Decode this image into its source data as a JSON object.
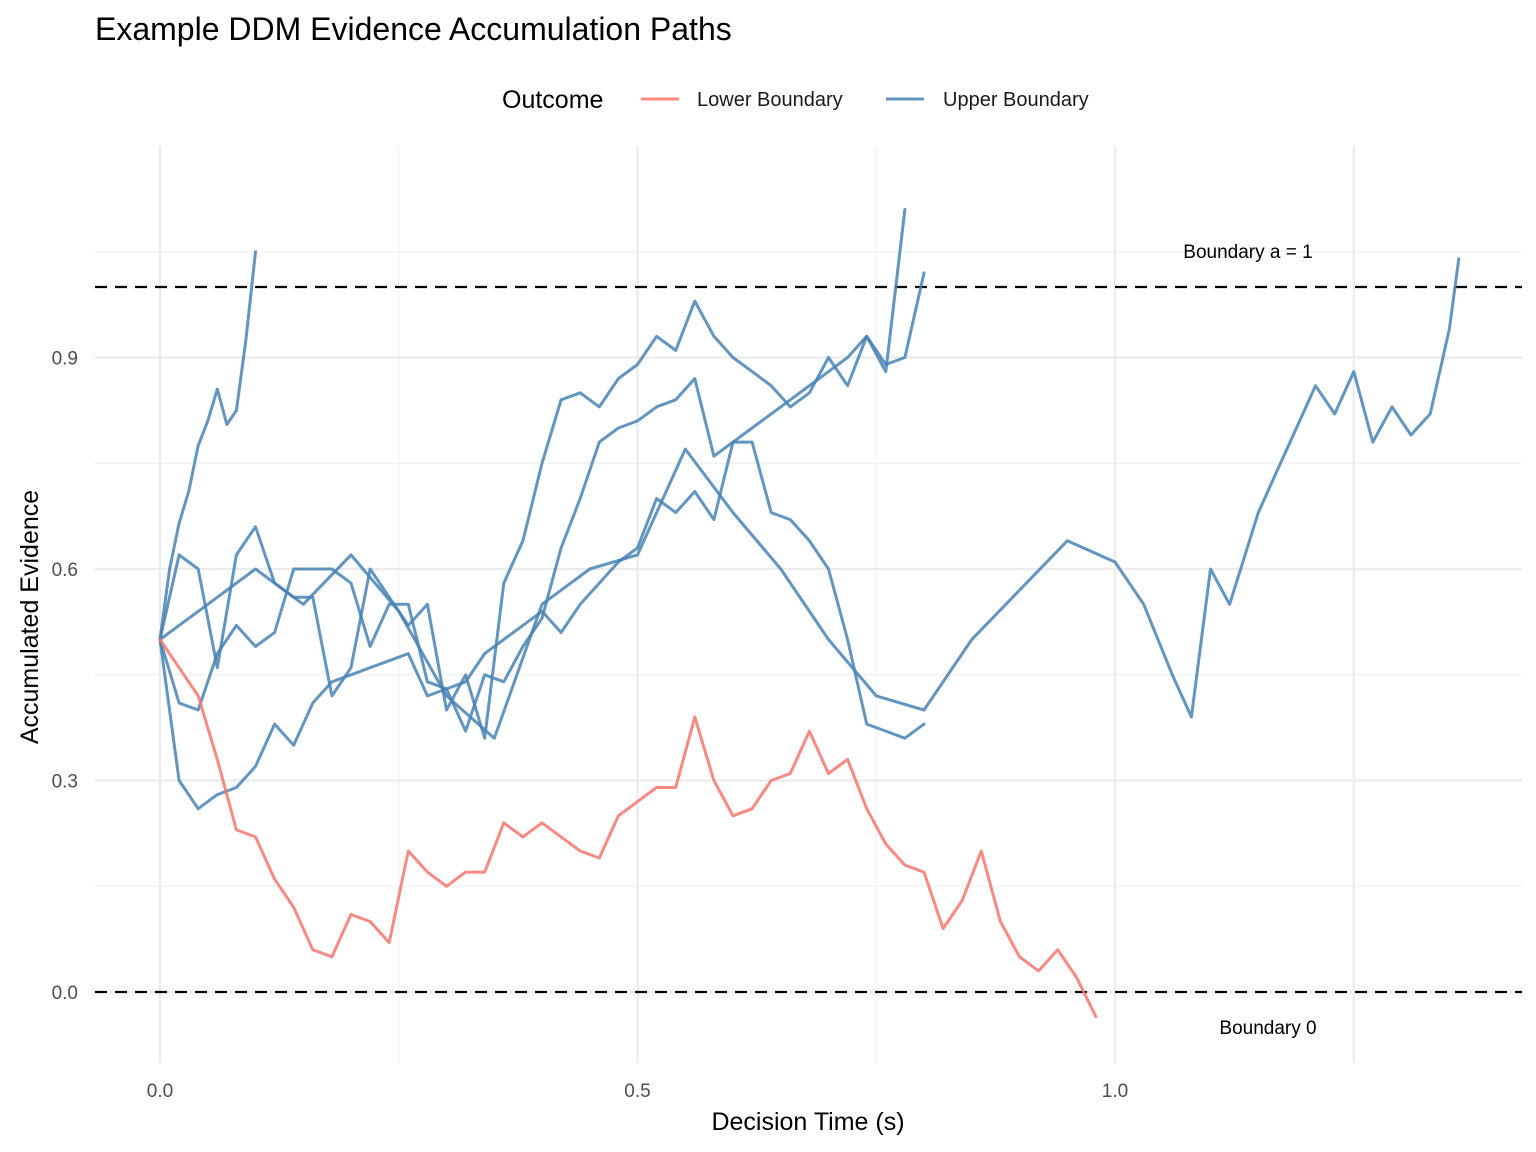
{
  "chart_data": {
    "type": "line",
    "title": "Example DDM Evidence Accumulation Paths",
    "xlabel": "Decision Time (s)",
    "ylabel": "Accumulated Evidence",
    "xlim": [
      -0.13,
      1.41
    ],
    "ylim": [
      -0.1,
      1.1
    ],
    "x_ticks": [
      0.0,
      0.5,
      1.0
    ],
    "x_tick_labels": [
      "0.0",
      "0.5",
      "1.0"
    ],
    "y_ticks": [
      0.0,
      0.3,
      0.6,
      0.9
    ],
    "y_tick_labels": [
      "0.0",
      "0.3",
      "0.6",
      "0.9"
    ],
    "grid": true,
    "legend": {
      "title": "Outcome",
      "position": "top",
      "entries": [
        {
          "label": "Lower Boundary",
          "color": "#F8766D"
        },
        {
          "label": "Upper Boundary",
          "color": "#4682B4"
        }
      ]
    },
    "reference_lines": [
      {
        "y": 1.0,
        "style": "dashed",
        "label": "Boundary a = 1"
      },
      {
        "y": 0.0,
        "style": "dashed",
        "label": "Boundary 0"
      }
    ],
    "series": [
      {
        "group": "Upper Boundary",
        "color": "#4682B4",
        "x": [
          0.0,
          0.01,
          0.02,
          0.03,
          0.04,
          0.05,
          0.06,
          0.07,
          0.08,
          0.09,
          0.1
        ],
        "y": [
          0.5,
          0.6,
          0.665,
          0.71,
          0.775,
          0.81,
          0.855,
          0.805,
          0.825,
          0.925,
          1.05
        ]
      },
      {
        "group": "Upper Boundary",
        "color": "#4682B4",
        "x": [
          0.0,
          0.02,
          0.04,
          0.06,
          0.08,
          0.1,
          0.12,
          0.14,
          0.16,
          0.18,
          0.2,
          0.22,
          0.24,
          0.26,
          0.28,
          0.3,
          0.32,
          0.34,
          0.36,
          0.38,
          0.4,
          0.42,
          0.44,
          0.46,
          0.48,
          0.5,
          0.52,
          0.54,
          0.56,
          0.58,
          0.6,
          0.62,
          0.64,
          0.66,
          0.68,
          0.7,
          0.72,
          0.74,
          0.76,
          0.78,
          0.8
        ],
        "y": [
          0.5,
          0.41,
          0.4,
          0.48,
          0.52,
          0.49,
          0.51,
          0.6,
          0.6,
          0.6,
          0.58,
          0.49,
          0.55,
          0.55,
          0.44,
          0.43,
          0.44,
          0.48,
          0.5,
          0.52,
          0.54,
          0.51,
          0.55,
          0.58,
          0.61,
          0.63,
          0.7,
          0.68,
          0.71,
          0.67,
          0.78,
          0.78,
          0.68,
          0.67,
          0.64,
          0.6,
          0.5,
          0.38,
          0.37,
          0.36,
          0.38
        ]
      },
      {
        "group": "Upper Boundary",
        "color": "#4682B4",
        "x": [
          0.0,
          0.02,
          0.04,
          0.06,
          0.08,
          0.1,
          0.12,
          0.14,
          0.16,
          0.18,
          0.2,
          0.22,
          0.24,
          0.26,
          0.28,
          0.3,
          0.32,
          0.34,
          0.36,
          0.38,
          0.4,
          0.42,
          0.44,
          0.46,
          0.48,
          0.5,
          0.52,
          0.54,
          0.56,
          0.58,
          0.6,
          0.62,
          0.64,
          0.66,
          0.68,
          0.7,
          0.72,
          0.74,
          0.76,
          0.78,
          0.8
        ],
        "y": [
          0.5,
          0.3,
          0.26,
          0.28,
          0.29,
          0.32,
          0.38,
          0.35,
          0.41,
          0.44,
          0.45,
          0.46,
          0.47,
          0.48,
          0.42,
          0.43,
          0.37,
          0.45,
          0.44,
          0.49,
          0.53,
          0.63,
          0.7,
          0.78,
          0.8,
          0.81,
          0.83,
          0.84,
          0.87,
          0.76,
          0.78,
          0.8,
          0.82,
          0.84,
          0.86,
          0.88,
          0.9,
          0.93,
          0.89,
          0.9,
          1.02
        ]
      },
      {
        "group": "Upper Boundary",
        "color": "#4682B4",
        "x": [
          0.0,
          0.02,
          0.04,
          0.06,
          0.08,
          0.1,
          0.12,
          0.14,
          0.16,
          0.18,
          0.2,
          0.22,
          0.24,
          0.26,
          0.28,
          0.3,
          0.32,
          0.34,
          0.36,
          0.38,
          0.4,
          0.42,
          0.44,
          0.46,
          0.48,
          0.5,
          0.52,
          0.54,
          0.56,
          0.58,
          0.6,
          0.62,
          0.64,
          0.66,
          0.68,
          0.7,
          0.72,
          0.74,
          0.76,
          0.78
        ],
        "y": [
          0.5,
          0.62,
          0.6,
          0.46,
          0.62,
          0.66,
          0.58,
          0.56,
          0.56,
          0.42,
          0.46,
          0.6,
          0.56,
          0.52,
          0.55,
          0.4,
          0.45,
          0.36,
          0.58,
          0.64,
          0.75,
          0.84,
          0.85,
          0.83,
          0.87,
          0.89,
          0.93,
          0.91,
          0.98,
          0.93,
          0.9,
          0.88,
          0.86,
          0.83,
          0.85,
          0.9,
          0.86,
          0.93,
          0.88,
          1.11
        ]
      },
      {
        "group": "Upper Boundary",
        "color": "#4682B4",
        "x": [
          0.0,
          0.05,
          0.1,
          0.15,
          0.2,
          0.25,
          0.3,
          0.35,
          0.4,
          0.45,
          0.5,
          0.55,
          0.6,
          0.65,
          0.7,
          0.75,
          0.8,
          0.85,
          0.9,
          0.95,
          1.0,
          1.03,
          1.06,
          1.08,
          1.1,
          1.12,
          1.15,
          1.17,
          1.19,
          1.21,
          1.23,
          1.25,
          1.27,
          1.29,
          1.31,
          1.33,
          1.35,
          1.36
        ],
        "y": [
          0.5,
          0.55,
          0.6,
          0.55,
          0.62,
          0.54,
          0.42,
          0.36,
          0.55,
          0.6,
          0.62,
          0.77,
          0.68,
          0.6,
          0.5,
          0.42,
          0.4,
          0.5,
          0.57,
          0.64,
          0.61,
          0.55,
          0.45,
          0.39,
          0.6,
          0.55,
          0.68,
          0.74,
          0.8,
          0.86,
          0.82,
          0.88,
          0.78,
          0.83,
          0.79,
          0.82,
          0.94,
          1.04
        ]
      },
      {
        "group": "Lower Boundary",
        "color": "#F8766D",
        "x": [
          0.0,
          0.02,
          0.04,
          0.06,
          0.08,
          0.1,
          0.12,
          0.14,
          0.16,
          0.18,
          0.2,
          0.22,
          0.24,
          0.26,
          0.28,
          0.3,
          0.32,
          0.34,
          0.36,
          0.38,
          0.4,
          0.42,
          0.44,
          0.46,
          0.48,
          0.5,
          0.52,
          0.54,
          0.56,
          0.58,
          0.6,
          0.62,
          0.64,
          0.66,
          0.68,
          0.7,
          0.72,
          0.74,
          0.76,
          0.78,
          0.8,
          0.82,
          0.84,
          0.86,
          0.88,
          0.9,
          0.92,
          0.94,
          0.96,
          0.98
        ],
        "y": [
          0.5,
          0.46,
          0.42,
          0.33,
          0.23,
          0.22,
          0.16,
          0.12,
          0.06,
          0.05,
          0.11,
          0.1,
          0.07,
          0.2,
          0.17,
          0.15,
          0.17,
          0.17,
          0.24,
          0.22,
          0.24,
          0.22,
          0.2,
          0.19,
          0.25,
          0.27,
          0.29,
          0.29,
          0.39,
          0.3,
          0.25,
          0.26,
          0.3,
          0.31,
          0.37,
          0.31,
          0.33,
          0.26,
          0.21,
          0.18,
          0.17,
          0.09,
          0.13,
          0.2,
          0.1,
          0.05,
          0.03,
          0.06,
          0.02,
          -0.035
        ]
      }
    ]
  }
}
